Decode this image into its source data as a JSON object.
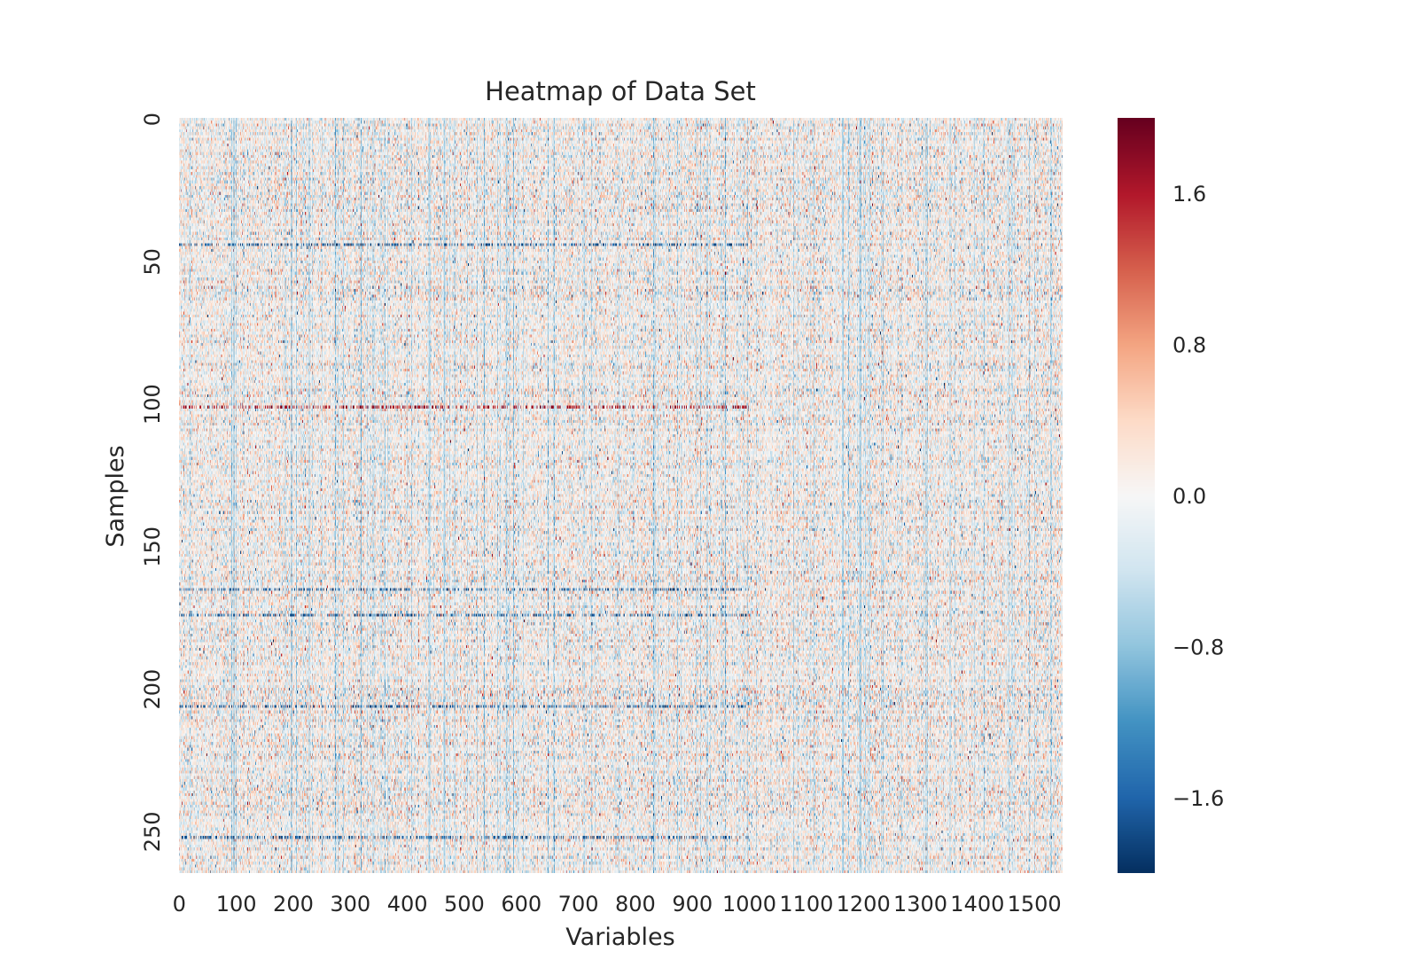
{
  "chart_data": {
    "type": "heatmap",
    "title": "Heatmap of Data Set",
    "xlabel": "Variables",
    "ylabel": "Samples",
    "x_range": [
      0,
      1550
    ],
    "y_range": [
      0,
      265
    ],
    "x_ticks": [
      "0",
      "100",
      "200",
      "300",
      "400",
      "500",
      "600",
      "700",
      "800",
      "900",
      "1000",
      "1100",
      "1200",
      "1300",
      "1400",
      "1500"
    ],
    "y_ticks": [
      "0",
      "50",
      "100",
      "150",
      "200",
      "250"
    ],
    "colormap": "RdBu_r",
    "colorbar": {
      "vmin": -2.0,
      "vmax": 2.0,
      "ticks": [
        "1.6",
        "0.8",
        "0.0",
        "−0.8",
        "−1.6"
      ],
      "tick_values": [
        1.6,
        0.8,
        0.0,
        -0.8,
        -1.6
      ]
    },
    "colors": {
      "min": "#053061",
      "low": "#2166ac",
      "mid_low": "#92c5de",
      "mid": "#f7f7f7",
      "mid_high": "#f4a582",
      "high": "#b2182b",
      "max": "#67001f"
    },
    "values_note": "dense random-like field centered near 0.0 with vertical column streaks and several horizontal rows of strong values near samples 101, 165, 206 and 252"
  }
}
